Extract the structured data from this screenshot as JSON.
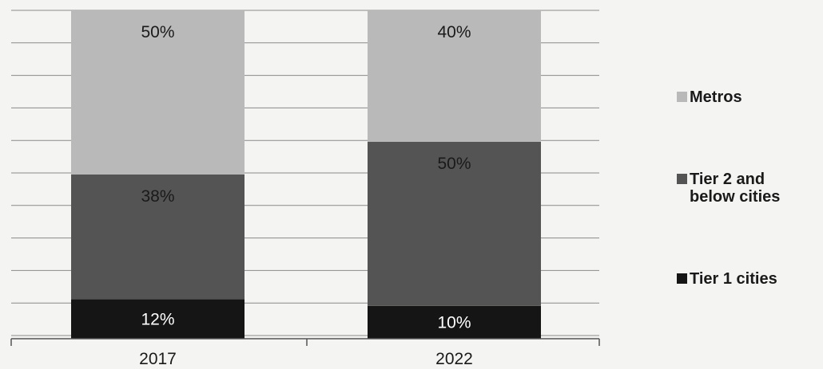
{
  "chart_data": {
    "type": "bar",
    "stacked": true,
    "normalized": true,
    "categories": [
      "2017",
      "2022"
    ],
    "series": [
      {
        "name": "Tier 1 cities",
        "values": [
          12,
          10
        ],
        "labels": [
          "12%",
          "10%"
        ]
      },
      {
        "name": "Tier 2 and below cities",
        "values": [
          38,
          50
        ],
        "labels": [
          "38%",
          "50%"
        ]
      },
      {
        "name": "Metros",
        "values": [
          50,
          40
        ],
        "labels": [
          "50%",
          "40%"
        ]
      }
    ],
    "legend_order": [
      "Metros",
      "Tier 2 and below cities",
      "Tier 1 cities"
    ],
    "legend_position": "right",
    "ylim": [
      0,
      100
    ],
    "grid": true,
    "title": "",
    "xlabel": "",
    "ylabel": "",
    "colors": {
      "Metros": "#b9b9b9",
      "Tier 2 and below cities": "#545454",
      "Tier 1 cities": "#151515",
      "background": "#f4f4f2",
      "grid": "#8a8a8a",
      "axis": "#555555"
    }
  }
}
